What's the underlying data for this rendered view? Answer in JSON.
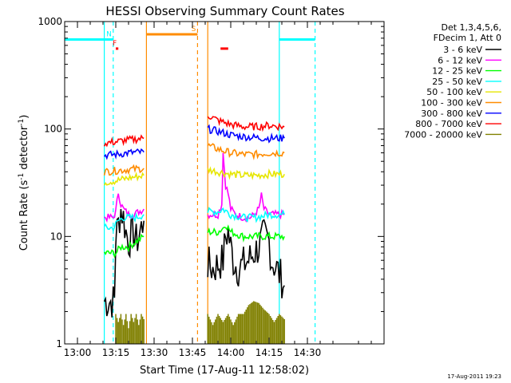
{
  "chart_data": {
    "type": "line",
    "title": "HESSI Observing Summary Count Rates",
    "xlabel": "Start Time (17-Aug-11 12:58:02)",
    "ylabel_main": "Count Rate (s",
    "ylabel_sup1": "-1",
    "ylabel_mid": " detector",
    "ylabel_sup2": "-1",
    "ylabel_end": ")",
    "ylog": true,
    "xlim": [
      "12:55",
      "15:00"
    ],
    "ylim": [
      1,
      1000
    ],
    "x_ticks": [
      "13:00",
      "13:15",
      "13:30",
      "13:45",
      "14:00",
      "14:15",
      "14:30"
    ],
    "y_ticks": [
      "1",
      "10",
      "100",
      "1000"
    ],
    "legend_header": [
      "Det 1,3,4,5,6,",
      "FDecim 1, Att 0"
    ],
    "series": [
      {
        "name": "3 - 6 keV",
        "color": "#000000",
        "segments": [
          {
            "x": [
              "13:10:30",
              "13:12:00",
              "13:13:00",
              "13:14:30",
              "13:15:00",
              "13:16:00",
              "13:17:00",
              "13:18:00",
              "13:19:00",
              "13:20:00",
              "13:21:00",
              "13:22:00",
              "13:23:00",
              "13:24:00",
              "13:25:00",
              "13:26:00"
            ],
            "y": [
              2.5,
              2.5,
              2.5,
              2.5,
              10,
              13,
              18,
              15,
              11,
              9,
              10,
              11,
              9,
              10,
              12,
              14
            ]
          },
          {
            "x": [
              "13:51:00",
              "13:53:00",
              "13:55:00",
              "13:57:00",
              "13:58:00",
              "13:59:00",
              "14:00:00",
              "14:01:00",
              "14:03:00",
              "14:05:00",
              "14:07:00",
              "14:09:00",
              "14:11:00",
              "14:13:00",
              "14:15:00",
              "14:16:00",
              "14:18:00",
              "14:20:00",
              "14:21:00"
            ],
            "y": [
              5.5,
              5,
              5.5,
              6,
              10,
              11,
              8,
              6,
              5,
              5.5,
              6,
              7,
              8,
              10,
              9,
              6,
              5,
              4,
              3.5
            ]
          }
        ]
      },
      {
        "name": "6 - 12 keV",
        "color": "#ff00ff",
        "segments": [
          {
            "x": [
              "13:10:30",
              "13:14:00",
              "13:15:00",
              "13:16:00",
              "13:17:00",
              "13:18:00",
              "13:20:00",
              "13:22:00",
              "13:24:00",
              "13:26:00"
            ],
            "y": [
              15,
              15,
              17,
              26,
              20,
              18,
              16,
              16,
              17,
              18
            ]
          },
          {
            "x": [
              "13:51:00",
              "13:55:00",
              "13:56:30",
              "13:57:00",
              "13:58:00",
              "13:59:00",
              "14:00:00",
              "14:02:00",
              "14:05:00",
              "14:08:00",
              "14:11:00",
              "14:12:00",
              "14:13:00",
              "14:15:00",
              "14:18:00",
              "14:21:00"
            ],
            "y": [
              16,
              16,
              20,
              60,
              30,
              25,
              18,
              16,
              15,
              15,
              18,
              24,
              18,
              16,
              16,
              16
            ]
          }
        ]
      },
      {
        "name": "12 - 25 keV",
        "color": "#00ff00",
        "segments": [
          {
            "x": [
              "13:10:30",
              "13:15:00",
              "13:17:00",
              "13:20:00",
              "13:23:00",
              "13:26:00"
            ],
            "y": [
              7,
              7,
              8,
              8,
              9,
              10
            ]
          },
          {
            "x": [
              "13:51:00",
              "13:55:00",
              "13:57:00",
              "13:58:00",
              "14:00:00",
              "14:05:00",
              "14:10:00",
              "14:15:00",
              "14:21:00"
            ],
            "y": [
              11,
              11,
              12,
              13,
              11,
              10,
              10,
              10,
              10
            ]
          }
        ]
      },
      {
        "name": "25 - 50 keV",
        "color": "#00ffff",
        "segments": [
          {
            "x": [
              "13:10:30",
              "13:14:00",
              "13:16:00",
              "13:18:00",
              "13:20:00",
              "13:23:00",
              "13:26:00"
            ],
            "y": [
              12,
              12,
              14,
              15,
              15,
              15,
              16
            ]
          },
          {
            "x": [
              "13:51:00",
              "13:55:00",
              "13:57:00",
              "14:00:00",
              "14:05:00",
              "14:10:00",
              "14:15:00",
              "14:21:00"
            ],
            "y": [
              17,
              17,
              18,
              16,
              15,
              15,
              16,
              16
            ]
          }
        ]
      },
      {
        "name": "50 - 100 keV",
        "color": "#e6e600",
        "segments": [
          {
            "x": [
              "13:10:30",
              "13:15:00",
              "13:20:00",
              "13:26:00"
            ],
            "y": [
              32,
              33,
              35,
              37
            ]
          },
          {
            "x": [
              "13:51:00",
              "13:55:00",
              "14:00:00",
              "14:05:00",
              "14:10:00",
              "14:15:00",
              "14:21:00"
            ],
            "y": [
              42,
              40,
              38,
              37,
              37,
              38,
              38
            ]
          }
        ]
      },
      {
        "name": "100 - 300 keV",
        "color": "#ff8c00",
        "segments": [
          {
            "x": [
              "13:10:30",
              "13:15:00",
              "13:20:00",
              "13:26:00"
            ],
            "y": [
              40,
              41,
              42,
              43
            ]
          },
          {
            "x": [
              "13:51:00",
              "13:55:00",
              "14:00:00",
              "14:05:00",
              "14:10:00",
              "14:15:00",
              "14:21:00"
            ],
            "y": [
              70,
              65,
              60,
              58,
              58,
              60,
              60
            ]
          }
        ]
      },
      {
        "name": "300 - 800 keV",
        "color": "#0000ff",
        "segments": [
          {
            "x": [
              "13:10:30",
              "13:15:00",
              "13:20:00",
              "13:26:00"
            ],
            "y": [
              57,
              58,
              60,
              61
            ]
          },
          {
            "x": [
              "13:51:00",
              "13:55:00",
              "14:00:00",
              "14:05:00",
              "14:10:00",
              "14:15:00",
              "14:21:00"
            ],
            "y": [
              100,
              95,
              88,
              85,
              83,
              82,
              82
            ]
          }
        ]
      },
      {
        "name": "800 - 7000 keV",
        "color": "#ff0000",
        "segments": [
          {
            "x": [
              "13:10:30",
              "13:15:00",
              "13:20:00",
              "13:26:00"
            ],
            "y": [
              74,
              76,
              79,
              82
            ]
          },
          {
            "x": [
              "13:51:00",
              "13:55:00",
              "14:00:00",
              "14:05:00",
              "14:10:00",
              "14:15:00",
              "14:21:00"
            ],
            "y": [
              135,
              120,
              110,
              105,
              105,
              108,
              105
            ]
          }
        ]
      },
      {
        "name": "7000 - 20000 keV",
        "color": "#808000",
        "segments": [
          {
            "x": [
              "13:15:00",
              "13:16:00",
              "13:17:00",
              "13:18:00",
              "13:19:00",
              "13:20:00",
              "13:21:00",
              "13:22:00",
              "13:23:00",
              "13:24:00",
              "13:25:00",
              "13:26:00"
            ],
            "y": [
              1.9,
              1.6,
              1.9,
              1.5,
              1.9,
              1.4,
              1.9,
              1.6,
              1.9,
              1.5,
              1.9,
              1.7
            ]
          },
          {
            "x": [
              "13:51:00",
              "13:53:00",
              "13:55:00",
              "13:57:00",
              "13:59:00",
              "14:01:00",
              "14:03:00",
              "14:05:00",
              "14:07:00",
              "14:09:00",
              "14:11:00",
              "14:13:00",
              "14:15:00",
              "14:17:00",
              "14:19:00",
              "14:21:00"
            ],
            "y": [
              1.9,
              1.5,
              1.9,
              1.6,
              1.9,
              1.5,
              1.9,
              1.9,
              2.3,
              2.5,
              2.4,
              2.1,
              1.9,
              1.6,
              1.9,
              1.7
            ]
          }
        ]
      }
    ],
    "state_flags": [
      {
        "label": "N",
        "color": "#00ffff",
        "x": [
          "12:55",
          "13:14"
        ],
        "y": 680
      },
      {
        "label": "S",
        "color": "#ff8c00",
        "x": [
          "13:27",
          "13:47"
        ],
        "y": 760
      },
      {
        "label": "F",
        "color": "#ff0000",
        "x": [
          "13:15",
          "13:16"
        ],
        "y": 560
      },
      {
        "label": "",
        "color": "#ff0000",
        "x": [
          "13:56",
          "13:59"
        ],
        "y": 560
      },
      {
        "label": "",
        "color": "#00ffff",
        "x": [
          "14:19",
          "14:33"
        ],
        "y": 680
      }
    ],
    "vlines": [
      {
        "x": "13:10:30",
        "color": "#00ffff",
        "style": "solid"
      },
      {
        "x": "13:14:00",
        "color": "#00ffff",
        "style": "dashed"
      },
      {
        "x": "13:27:00",
        "color": "#ff8c00",
        "style": "solid"
      },
      {
        "x": "13:47:00",
        "color": "#ff8c00",
        "style": "dashed"
      },
      {
        "x": "13:51:00",
        "color": "#ff8c00",
        "style": "solid"
      },
      {
        "x": "14:19:00",
        "color": "#00ffff",
        "style": "solid"
      },
      {
        "x": "14:33:00",
        "color": "#00ffff",
        "style": "dashed"
      }
    ]
  },
  "footer_timestamp": "17-Aug-2011 19:23"
}
